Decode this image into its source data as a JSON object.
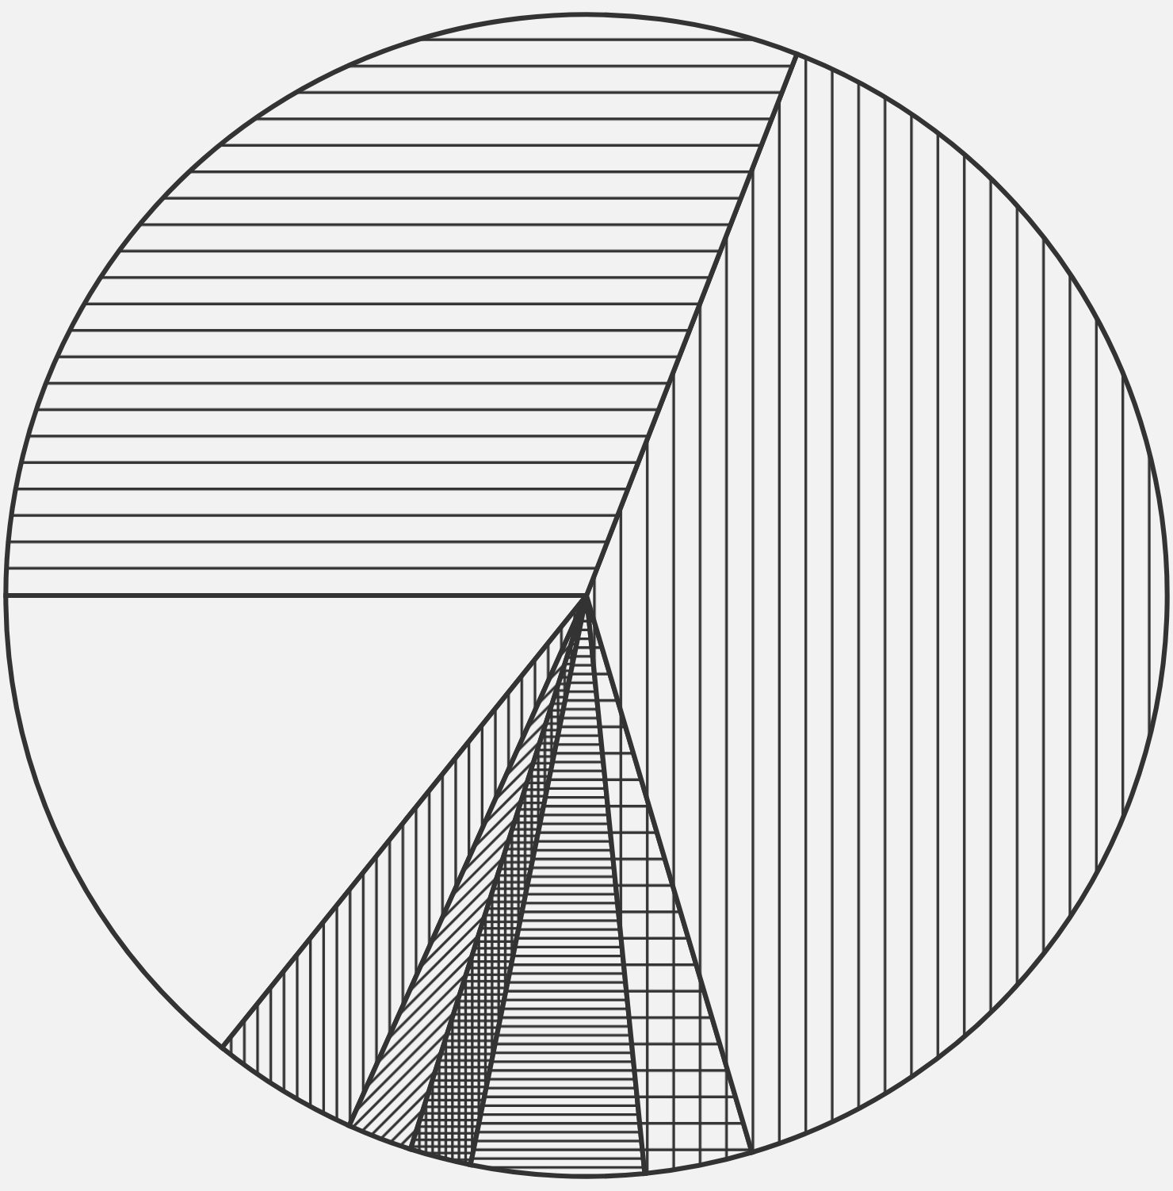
{
  "chart_data": {
    "type": "pie",
    "categories": [
      null,
      null,
      null,
      null,
      null,
      null,
      null,
      null
    ],
    "values": [
      14.2,
      4.1,
      1.8,
      1.7,
      4.8,
      3.0,
      39.5,
      30.9
    ],
    "colors": [
      "#333333",
      "#333333",
      "#333333",
      "#333333",
      "#333333",
      "#333333",
      "#333333",
      "#333333"
    ]
  }
}
